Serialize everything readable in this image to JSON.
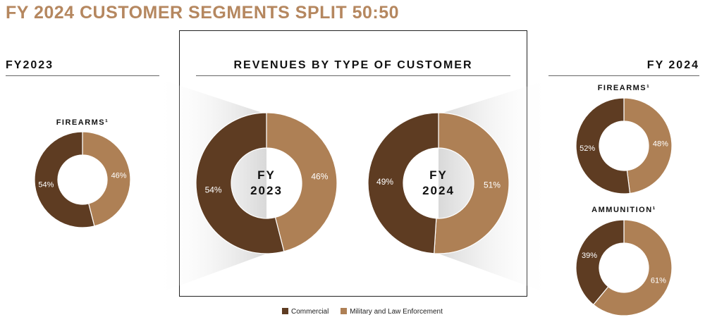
{
  "title": "FY 2024 CUSTOMER SEGMENTS SPLIT 50:50",
  "left_label": "FY2023",
  "center_label": "REVENUES BY TYPE OF CUSTOMER",
  "right_label": "FY 2024",
  "colors": {
    "commercial": "#5e3c22",
    "military": "#ae8055"
  },
  "legend": [
    {
      "name": "Commercial",
      "color": "#5e3c22"
    },
    {
      "name": "Military and Law Enforcement",
      "color": "#ae8055"
    }
  ],
  "chart_data": [
    {
      "type": "pie",
      "title": "FIREARMS¹",
      "center_label": [],
      "group": "FY2023",
      "series": [
        {
          "name": "Commercial",
          "value": 54
        },
        {
          "name": "Military and Law Enforcement",
          "value": 46
        }
      ]
    },
    {
      "type": "pie",
      "title": "",
      "center_label": [
        "FY",
        "2023"
      ],
      "group": "REVENUES BY TYPE OF CUSTOMER",
      "series": [
        {
          "name": "Commercial",
          "value": 54
        },
        {
          "name": "Military and Law Enforcement",
          "value": 46
        }
      ]
    },
    {
      "type": "pie",
      "title": "",
      "center_label": [
        "FY",
        "2024"
      ],
      "group": "REVENUES BY TYPE OF CUSTOMER",
      "series": [
        {
          "name": "Commercial",
          "value": 49
        },
        {
          "name": "Military and Law Enforcement",
          "value": 51
        }
      ]
    },
    {
      "type": "pie",
      "title": "FIREARMS¹",
      "center_label": [],
      "group": "FY 2024",
      "series": [
        {
          "name": "Commercial",
          "value": 52
        },
        {
          "name": "Military and Law Enforcement",
          "value": 48
        }
      ]
    },
    {
      "type": "pie",
      "title": "AMMUNITION¹",
      "center_label": [],
      "group": "FY 2024",
      "series": [
        {
          "name": "Commercial",
          "value": 39
        },
        {
          "name": "Military and Law Enforcement",
          "value": 61
        }
      ]
    }
  ]
}
